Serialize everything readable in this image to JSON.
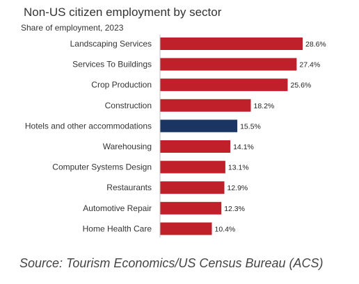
{
  "chart_data": {
    "type": "bar",
    "orientation": "horizontal",
    "title": "Non-US citizen employment by sector",
    "subtitle": "Share of employment, 2023",
    "categories": [
      "Landscaping Services",
      "Services To Buildings",
      "Crop Production",
      "Construction",
      "Hotels and other accommodations",
      "Warehousing",
      "Computer Systems Design",
      "Restaurants",
      "Automotive Repair",
      "Home Health Care"
    ],
    "values": [
      28.6,
      27.4,
      25.6,
      18.2,
      15.5,
      14.1,
      13.1,
      12.9,
      12.3,
      10.4
    ],
    "value_labels": [
      "28.6%",
      "27.4%",
      "25.6%",
      "18.2%",
      "15.5%",
      "14.1%",
      "13.1%",
      "12.9%",
      "12.3%",
      "10.4%"
    ],
    "highlight_index": 4,
    "colors": {
      "bar": "#c0202a",
      "highlight": "#1b3562",
      "axis": "#bfbfbf"
    },
    "xlim": [
      0,
      30
    ],
    "grid": false,
    "legend": "none"
  },
  "source": "Source: Tourism Economics/US Census Bureau (ACS)"
}
